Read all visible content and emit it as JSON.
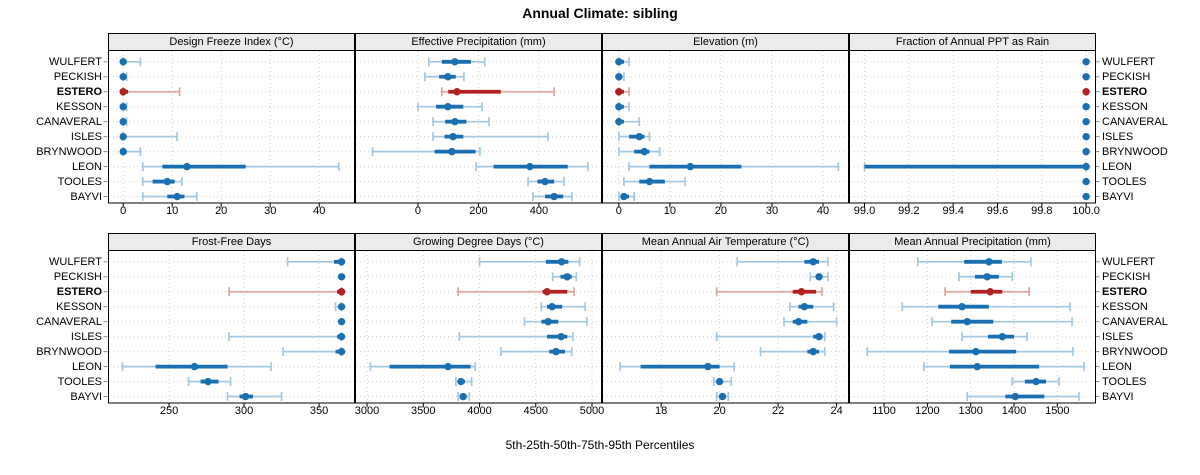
{
  "title": "Annual Climate: sibling",
  "caption": "5th-25th-50th-75th-95th Percentiles",
  "highlight_location": "ESTERO",
  "locations": [
    "WULFERT",
    "PECKISH",
    "ESTERO",
    "KESSON",
    "CANAVERAL",
    "ISLES",
    "BRYNWOOD",
    "LEON",
    "TOOLES",
    "BAYVI"
  ],
  "colors": {
    "normal": "#1a6fb0",
    "normal_light": "#a3c8e4",
    "highlight": "#b22222",
    "highlight_light": "#e0a59e",
    "strip_bg": "#ebebeb",
    "panel_border": "#000000",
    "grid": "#cfcfcf",
    "background": "#ffffff"
  },
  "chart_data": {
    "type": "dotplot-percentiles",
    "percentiles": [
      5,
      25,
      50,
      75,
      95
    ],
    "legend_note": "dot = 50th percentile, thick bar = 25th-75th, thin capped line = 5th-95th",
    "panels": [
      {
        "title": "Design Freeze Index (°C)",
        "xlim": [
          -3.1,
          47.1
        ],
        "tick_values": [
          0,
          10,
          20,
          30,
          40
        ],
        "tick_labels": [
          "0",
          "10",
          "20",
          "30",
          "40"
        ],
        "series": [
          {
            "location": "WULFERT",
            "p": [
              0,
              0,
              0,
              0.5,
              3.5
            ]
          },
          {
            "location": "PECKISH",
            "p": [
              0,
              0,
              0,
              0,
              0.7
            ]
          },
          {
            "location": "ESTERO",
            "p": [
              0,
              0,
              0,
              1,
              11.5
            ]
          },
          {
            "location": "KESSON",
            "p": [
              0,
              0,
              0,
              0,
              0.7
            ]
          },
          {
            "location": "CANAVERAL",
            "p": [
              0,
              0,
              0,
              0,
              0.7
            ]
          },
          {
            "location": "ISLES",
            "p": [
              0,
              0,
              0,
              0.5,
              11
            ]
          },
          {
            "location": "BRYNWOOD",
            "p": [
              0,
              0,
              0,
              0.7,
              3.5
            ]
          },
          {
            "location": "LEON",
            "p": [
              4,
              8,
              13,
              25,
              44
            ]
          },
          {
            "location": "TOOLES",
            "p": [
              4,
              6,
              9,
              10.5,
              12
            ]
          },
          {
            "location": "BAYVI",
            "p": [
              4,
              9,
              11,
              12.5,
              15
            ]
          }
        ]
      },
      {
        "title": "Effective Precipitation (mm)",
        "xlim": [
          -208,
          605
        ],
        "tick_values": [
          0,
          200,
          400
        ],
        "tick_labels": [
          "0",
          "200",
          "400"
        ],
        "series": [
          {
            "location": "WULFERT",
            "p": [
              36,
              79,
              122,
              175,
              221
            ]
          },
          {
            "location": "PECKISH",
            "p": [
              23,
              70,
              99,
              125,
              152
            ]
          },
          {
            "location": "ESTERO",
            "p": [
              79,
              100,
              129,
              274,
              450
            ]
          },
          {
            "location": "KESSON",
            "p": [
              0,
              60,
              99,
              150,
              212
            ]
          },
          {
            "location": "CANAVERAL",
            "p": [
              50,
              90,
              122,
              160,
              235
            ]
          },
          {
            "location": "ISLES",
            "p": [
              50,
              88,
              116,
              150,
              430
            ]
          },
          {
            "location": "BRYNWOOD",
            "p": [
              -150,
              55,
              112,
              190,
              205
            ]
          },
          {
            "location": "LEON",
            "p": [
              192,
              250,
              370,
              495,
              562
            ]
          },
          {
            "location": "TOOLES",
            "p": [
              364,
              395,
              420,
              450,
              483
            ]
          },
          {
            "location": "BAYVI",
            "p": [
              380,
              420,
              450,
              480,
              509
            ]
          }
        ]
      },
      {
        "title": "Elevation (m)",
        "xlim": [
          -3.3,
          44.9
        ],
        "tick_values": [
          0,
          10,
          20,
          30,
          40
        ],
        "tick_labels": [
          "0",
          "10",
          "20",
          "30",
          "40"
        ],
        "series": [
          {
            "location": "WULFERT",
            "p": [
              0,
              0,
              0,
              1,
              2
            ]
          },
          {
            "location": "PECKISH",
            "p": [
              0,
              0,
              0,
              0,
              1
            ]
          },
          {
            "location": "ESTERO",
            "p": [
              0,
              0,
              0,
              1,
              2
            ]
          },
          {
            "location": "KESSON",
            "p": [
              0,
              0,
              0,
              1,
              2
            ]
          },
          {
            "location": "CANAVERAL",
            "p": [
              0,
              0,
              0,
              1,
              4
            ]
          },
          {
            "location": "ISLES",
            "p": [
              0,
              2,
              4,
              5,
              6
            ]
          },
          {
            "location": "BRYNWOOD",
            "p": [
              0,
              3,
              5,
              6,
              8
            ]
          },
          {
            "location": "LEON",
            "p": [
              2,
              6,
              14,
              24,
              43
            ]
          },
          {
            "location": "TOOLES",
            "p": [
              1,
              4,
              6,
              9,
              13
            ]
          },
          {
            "location": "BAYVI",
            "p": [
              0,
              0.5,
              1,
              2,
              3
            ]
          }
        ]
      },
      {
        "title": "Fraction of Annual PPT as Rain",
        "xlim": [
          98.93,
          100.04
        ],
        "tick_values": [
          99.0,
          99.2,
          99.4,
          99.6,
          99.8,
          100.0
        ],
        "tick_labels": [
          "99.0",
          "99.2",
          "99.4",
          "99.6",
          "99.8",
          "100.0"
        ],
        "series": [
          {
            "location": "WULFERT",
            "p": [
              100,
              100,
              100,
              100,
              100
            ]
          },
          {
            "location": "PECKISH",
            "p": [
              100,
              100,
              100,
              100,
              100
            ]
          },
          {
            "location": "ESTERO",
            "p": [
              100,
              100,
              100,
              100,
              100
            ]
          },
          {
            "location": "KESSON",
            "p": [
              100,
              100,
              100,
              100,
              100
            ]
          },
          {
            "location": "CANAVERAL",
            "p": [
              100,
              100,
              100,
              100,
              100
            ]
          },
          {
            "location": "ISLES",
            "p": [
              100,
              100,
              100,
              100,
              100
            ]
          },
          {
            "location": "BRYNWOOD",
            "p": [
              100,
              100,
              100,
              100,
              100
            ]
          },
          {
            "location": "LEON",
            "p": [
              99.0,
              99.0,
              100,
              100,
              100
            ]
          },
          {
            "location": "TOOLES",
            "p": [
              100,
              100,
              100,
              100,
              100
            ]
          },
          {
            "location": "BAYVI",
            "p": [
              100,
              100,
              100,
              100,
              100
            ]
          }
        ]
      },
      {
        "title": "Frost-Free Days",
        "xlim": [
          209.3,
          373.3
        ],
        "tick_values": [
          250,
          300,
          350
        ],
        "tick_labels": [
          "250",
          "300",
          "350"
        ],
        "series": [
          {
            "location": "WULFERT",
            "p": [
              329,
              360,
              365,
              365,
              365
            ]
          },
          {
            "location": "PECKISH",
            "p": [
              365,
              365,
              365,
              365,
              365
            ]
          },
          {
            "location": "ESTERO",
            "p": [
              290,
              362,
              365,
              365,
              365
            ]
          },
          {
            "location": "KESSON",
            "p": [
              361,
              364,
              365,
              365,
              365
            ]
          },
          {
            "location": "CANAVERAL",
            "p": [
              365,
              365,
              365,
              365,
              365
            ]
          },
          {
            "location": "ISLES",
            "p": [
              290,
              362,
              365,
              365,
              365
            ]
          },
          {
            "location": "BRYNWOOD",
            "p": [
              326,
              361,
              365,
              365,
              365
            ]
          },
          {
            "location": "LEON",
            "p": [
              219,
              241,
              267,
              289,
              318
            ]
          },
          {
            "location": "TOOLES",
            "p": [
              263,
              271,
              276,
              283,
              291
            ]
          },
          {
            "location": "BAYVI",
            "p": [
              289,
              297,
              301,
              306,
              325
            ]
          }
        ]
      },
      {
        "title": "Growing Degree Days (°C)",
        "xlim": [
          2893,
          5080
        ],
        "tick_values": [
          3000,
          3500,
          4000,
          4500,
          5000
        ],
        "tick_labels": [
          "3000",
          "3500",
          "4000",
          "4500",
          "5000"
        ],
        "series": [
          {
            "location": "WULFERT",
            "p": [
              4000,
              4590,
              4730,
              4790,
              4890
            ]
          },
          {
            "location": "PECKISH",
            "p": [
              4650,
              4720,
              4780,
              4820,
              4860
            ]
          },
          {
            "location": "ESTERO",
            "p": [
              3810,
              4560,
              4600,
              4780,
              4840
            ]
          },
          {
            "location": "KESSON",
            "p": [
              4550,
              4600,
              4645,
              4735,
              4940
            ]
          },
          {
            "location": "CANAVERAL",
            "p": [
              4400,
              4550,
              4610,
              4700,
              4955
            ]
          },
          {
            "location": "ISLES",
            "p": [
              3820,
              4600,
              4725,
              4780,
              4830
            ]
          },
          {
            "location": "BRYNWOOD",
            "p": [
              4190,
              4620,
              4680,
              4760,
              4820
            ]
          },
          {
            "location": "LEON",
            "p": [
              3030,
              3200,
              3720,
              3920,
              3960
            ]
          },
          {
            "location": "TOOLES",
            "p": [
              3790,
              3815,
              3835,
              3870,
              3930
            ]
          },
          {
            "location": "BAYVI",
            "p": [
              3810,
              3830,
              3855,
              3880,
              3910
            ]
          }
        ]
      },
      {
        "title": "Mean Annual Air Temperature (°C)",
        "xlim": [
          15.98,
          24.39
        ],
        "tick_values": [
          18,
          20,
          22,
          24
        ],
        "tick_labels": [
          "18",
          "20",
          "22",
          "24"
        ],
        "series": [
          {
            "location": "WULFERT",
            "p": [
              20.6,
              22.9,
              23.2,
              23.4,
              23.7
            ]
          },
          {
            "location": "PECKISH",
            "p": [
              23.1,
              23.3,
              23.4,
              23.5,
              23.7
            ]
          },
          {
            "location": "ESTERO",
            "p": [
              19.9,
              22.5,
              22.8,
              23.3,
              23.5
            ]
          },
          {
            "location": "KESSON",
            "p": [
              22.4,
              22.7,
              22.9,
              23.2,
              23.9
            ]
          },
          {
            "location": "CANAVERAL",
            "p": [
              22.2,
              22.5,
              22.7,
              23.0,
              24.0
            ]
          },
          {
            "location": "ISLES",
            "p": [
              19.9,
              23.2,
              23.4,
              23.5,
              23.6
            ]
          },
          {
            "location": "BRYNWOOD",
            "p": [
              21.4,
              23.0,
              23.2,
              23.4,
              23.6
            ]
          },
          {
            "location": "LEON",
            "p": [
              16.6,
              17.3,
              19.6,
              20.0,
              20.5
            ]
          },
          {
            "location": "TOOLES",
            "p": [
              19.8,
              19.9,
              20.0,
              20.1,
              20.4
            ]
          },
          {
            "location": "BAYVI",
            "p": [
              19.9,
              20.0,
              20.1,
              20.2,
              20.3
            ]
          }
        ]
      },
      {
        "title": "Mean Annual Precipitation (mm)",
        "xlim": [
          1019,
          1587
        ],
        "tick_values": [
          1100,
          1200,
          1300,
          1400,
          1500
        ],
        "tick_labels": [
          "1100",
          "1200",
          "1300",
          "1400",
          "1500"
        ],
        "series": [
          {
            "location": "WULFERT",
            "p": [
              1178,
              1285,
              1342,
              1372,
              1439
            ]
          },
          {
            "location": "PECKISH",
            "p": [
              1273,
              1310,
              1338,
              1365,
              1396
            ]
          },
          {
            "location": "ESTERO",
            "p": [
              1241,
              1300,
              1345,
              1373,
              1435
            ]
          },
          {
            "location": "KESSON",
            "p": [
              1142,
              1225,
              1280,
              1342,
              1529
            ]
          },
          {
            "location": "CANAVERAL",
            "p": [
              1211,
              1255,
              1292,
              1352,
              1534
            ]
          },
          {
            "location": "ISLES",
            "p": [
              1280,
              1340,
              1373,
              1400,
              1430
            ]
          },
          {
            "location": "BRYNWOOD",
            "p": [
              1061,
              1250,
              1312,
              1405,
              1536
            ]
          },
          {
            "location": "LEON",
            "p": [
              1192,
              1252,
              1315,
              1458,
              1562
            ]
          },
          {
            "location": "TOOLES",
            "p": [
              1396,
              1425,
              1451,
              1474,
              1504
            ]
          },
          {
            "location": "BAYVI",
            "p": [
              1292,
              1380,
              1403,
              1470,
              1550
            ]
          }
        ]
      }
    ]
  }
}
